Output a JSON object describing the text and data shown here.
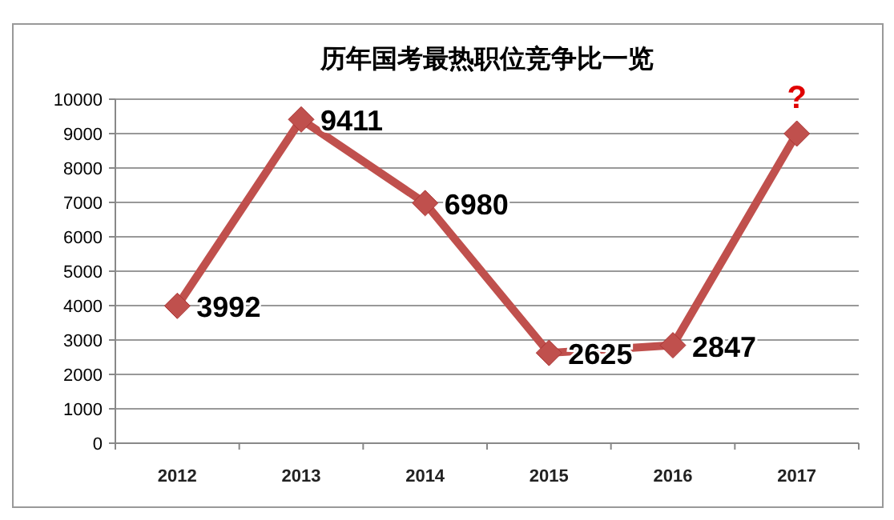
{
  "chart_data": {
    "type": "line",
    "title": "历年国考最热职位竞争比一览",
    "categories": [
      "2012",
      "2013",
      "2014",
      "2015",
      "2016",
      "2017"
    ],
    "series": [
      {
        "color": "#c0504d",
        "values": [
          3992,
          9411,
          6980,
          2625,
          2847,
          9000
        ],
        "value_labels": [
          "3992",
          "9411",
          "6980",
          "2625",
          "2847",
          null
        ]
      }
    ],
    "annotations": [
      {
        "text": "?",
        "x": "2017",
        "y": 9000
      }
    ],
    "ylim": [
      0,
      10000
    ],
    "yticks": [
      0,
      1000,
      2000,
      3000,
      4000,
      5000,
      6000,
      7000,
      8000,
      9000,
      10000
    ],
    "grid": "y",
    "marker": "diamond",
    "line_style": "solid"
  }
}
